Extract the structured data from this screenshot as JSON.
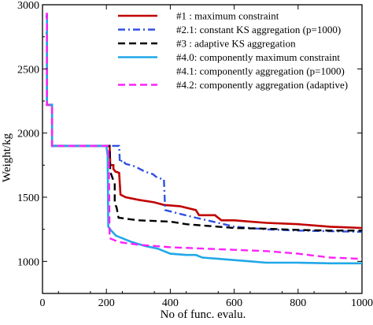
{
  "chart_data": {
    "type": "line",
    "xlabel": "No of func. evalu.",
    "ylabel": "Weight/kg",
    "xlim": [
      0,
      1000
    ],
    "ylim": [
      750,
      3000
    ],
    "x_ticks": [
      0,
      200,
      400,
      600,
      800,
      1000
    ],
    "y_ticks": [
      1000,
      1500,
      2000,
      2500,
      3000
    ],
    "x_tick_labels": [
      "0",
      "200",
      "400",
      "600",
      "800",
      "1000"
    ],
    "y_tick_labels": [
      "1000",
      "1500",
      "2000",
      "2500",
      "3000"
    ],
    "grid": false,
    "legend_position": "top-right",
    "series": [
      {
        "name": "#1   : maximum constraint",
        "color": "#c00000",
        "style": "solid",
        "points": [
          [
            10,
            2780
          ],
          [
            14,
            2780
          ],
          [
            14,
            2220
          ],
          [
            30,
            2220
          ],
          [
            30,
            1900
          ],
          [
            210,
            1900
          ],
          [
            212,
            1750
          ],
          [
            222,
            1750
          ],
          [
            222,
            1720
          ],
          [
            228,
            1700
          ],
          [
            240,
            1690
          ],
          [
            244,
            1520
          ],
          [
            260,
            1500
          ],
          [
            300,
            1480
          ],
          [
            350,
            1460
          ],
          [
            380,
            1440
          ],
          [
            430,
            1430
          ],
          [
            480,
            1400
          ],
          [
            490,
            1360
          ],
          [
            540,
            1360
          ],
          [
            560,
            1320
          ],
          [
            600,
            1320
          ],
          [
            650,
            1310
          ],
          [
            700,
            1300
          ],
          [
            800,
            1290
          ],
          [
            850,
            1280
          ],
          [
            900,
            1270
          ],
          [
            950,
            1265
          ],
          [
            1000,
            1260
          ]
        ]
      },
      {
        "name": "#2.1: constant KS aggregation (p=1000)",
        "color": "#3050e0",
        "style": "dashdot",
        "points": [
          [
            10,
            2900
          ],
          [
            14,
            2900
          ],
          [
            14,
            2220
          ],
          [
            30,
            2220
          ],
          [
            30,
            1900
          ],
          [
            240,
            1900
          ],
          [
            242,
            1770
          ],
          [
            250,
            1790
          ],
          [
            260,
            1760
          ],
          [
            290,
            1740
          ],
          [
            320,
            1700
          ],
          [
            345,
            1680
          ],
          [
            360,
            1650
          ],
          [
            380,
            1640
          ],
          [
            384,
            1400
          ],
          [
            430,
            1370
          ],
          [
            480,
            1340
          ],
          [
            550,
            1300
          ],
          [
            600,
            1270
          ],
          [
            700,
            1250
          ],
          [
            800,
            1240
          ],
          [
            900,
            1235
          ],
          [
            1000,
            1230
          ]
        ]
      },
      {
        "name": "#3   : adaptive KS aggregation",
        "color": "#000000",
        "style": "dashed",
        "points": [
          [
            10,
            2910
          ],
          [
            14,
            2910
          ],
          [
            14,
            2220
          ],
          [
            30,
            2220
          ],
          [
            30,
            1900
          ],
          [
            210,
            1900
          ],
          [
            212,
            1700
          ],
          [
            226,
            1600
          ],
          [
            226,
            1450
          ],
          [
            232,
            1420
          ],
          [
            235,
            1380
          ],
          [
            238,
            1340
          ],
          [
            300,
            1320
          ],
          [
            400,
            1310
          ],
          [
            450,
            1290
          ],
          [
            550,
            1270
          ],
          [
            600,
            1260
          ],
          [
            700,
            1255
          ],
          [
            800,
            1245
          ],
          [
            900,
            1240
          ],
          [
            1000,
            1240
          ]
        ]
      },
      {
        "name": "#4.0: componently maximum constraint",
        "color": "#20a8e8",
        "style": "solid",
        "points": [
          [
            10,
            2920
          ],
          [
            14,
            2920
          ],
          [
            14,
            2220
          ],
          [
            30,
            2220
          ],
          [
            30,
            1900
          ],
          [
            200,
            1900
          ],
          [
            204,
            1820
          ],
          [
            206,
            1270
          ],
          [
            215,
            1240
          ],
          [
            230,
            1200
          ],
          [
            280,
            1150
          ],
          [
            320,
            1120
          ],
          [
            360,
            1100
          ],
          [
            400,
            1060
          ],
          [
            450,
            1050
          ],
          [
            480,
            1050
          ],
          [
            500,
            1030
          ],
          [
            550,
            1020
          ],
          [
            600,
            1010
          ],
          [
            650,
            1000
          ],
          [
            700,
            990
          ],
          [
            800,
            990
          ],
          [
            900,
            985
          ],
          [
            1000,
            985
          ]
        ]
      },
      {
        "name": "#4.1: componently aggregation (p=1000)",
        "color": "#ffffff",
        "style": "solid",
        "points": []
      },
      {
        "name": "#4.2: componently aggregation (adaptive)",
        "color": "#ff20ff",
        "style": "dashed",
        "points": [
          [
            10,
            2930
          ],
          [
            14,
            2930
          ],
          [
            14,
            2220
          ],
          [
            30,
            2220
          ],
          [
            30,
            1900
          ],
          [
            205,
            1900
          ],
          [
            208,
            1770
          ],
          [
            210,
            1180
          ],
          [
            240,
            1150
          ],
          [
            300,
            1130
          ],
          [
            400,
            1110
          ],
          [
            500,
            1100
          ],
          [
            600,
            1090
          ],
          [
            700,
            1080
          ],
          [
            800,
            1060
          ],
          [
            900,
            1030
          ],
          [
            1000,
            1020
          ]
        ]
      }
    ]
  }
}
